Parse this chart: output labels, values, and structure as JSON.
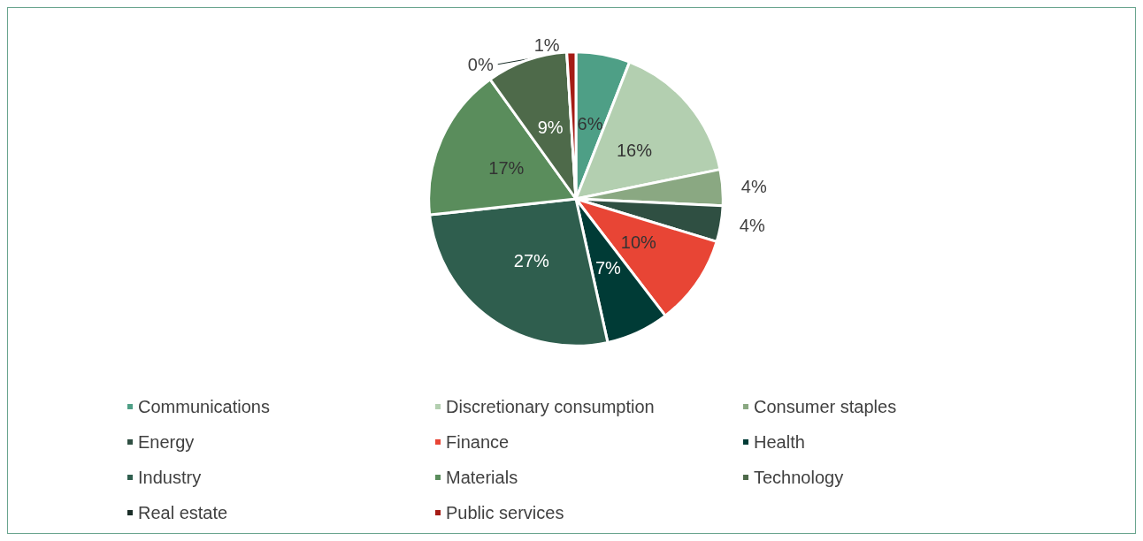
{
  "chart_data": {
    "type": "pie",
    "categories": [
      "Communications",
      "Discretionary consumption",
      "Consumer staples",
      "Energy",
      "Finance",
      "Health",
      "Industry",
      "Materials",
      "Technology",
      "Real estate",
      "Public services"
    ],
    "values": [
      6,
      16,
      4,
      4,
      10,
      7,
      27,
      17,
      9,
      0,
      1
    ],
    "value_labels": [
      "6%",
      "16%",
      "4%",
      "4%",
      "10%",
      "7%",
      "27%",
      "17%",
      "9%",
      "0%",
      "1%"
    ],
    "colors": [
      "#4e9f86",
      "#b3cfb0",
      "#8aa882",
      "#2f4f42",
      "#e84535",
      "#003b36",
      "#2f5e4e",
      "#5a8d5c",
      "#4e6a4a",
      "#1a2e28",
      "#a51c15"
    ],
    "legend": "bottom"
  }
}
